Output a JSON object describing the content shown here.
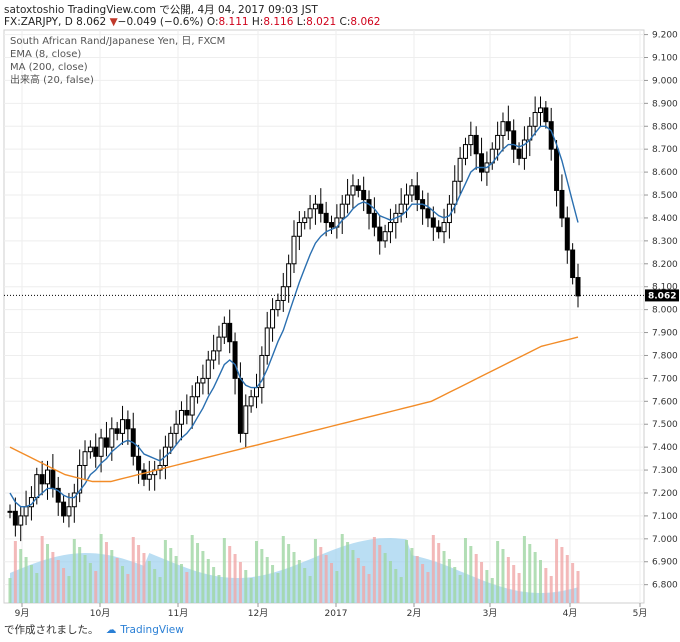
{
  "header": {
    "user": "satoxtoshio",
    "published": "TradingView.com で公開, 4月 04, 2017 09:03 JST",
    "symbol": "FX:ZARJPY, D",
    "last": "8.062",
    "change_arrow": "▼",
    "change": "−0.049 (−0.6%)",
    "o_label": "O:",
    "o": "8.111",
    "h_label": "H:",
    "h": "8.116",
    "l_label": "L:",
    "l": "8.021",
    "c_label": "C:",
    "c": "8.062"
  },
  "legend": {
    "title": "South African Rand/Japanese Yen, 日, FXCM",
    "ema": "EMA (8, close)",
    "ma": "MA (200, close)",
    "volume": "出来高 (20, false)"
  },
  "footer": {
    "text": "で作成されました。",
    "brand": "TradingView"
  },
  "colors": {
    "ema": "#2a6fb0",
    "ma": "#f28c28",
    "volume_area": "#9cd0ee",
    "up_vol": "#9fd6a3",
    "down_vol": "#f0a8a8",
    "grid": "#eeeeee"
  },
  "chart_data": {
    "type": "candlestick",
    "title": "South African Rand/Japanese Yen, 日, FXCM",
    "price_axis": {
      "range": [
        6.72,
        9.22
      ],
      "ticks": [
        "9.200",
        "9.100",
        "9.000",
        "8.900",
        "8.800",
        "8.700",
        "8.600",
        "8.500",
        "8.400",
        "8.300",
        "8.200",
        "8.100",
        "8.000",
        "7.900",
        "7.800",
        "7.700",
        "7.600",
        "7.500",
        "7.400",
        "7.300",
        "7.200",
        "7.100",
        "7.000",
        "6.900",
        "6.800"
      ]
    },
    "time_axis": {
      "ticks": [
        "9月",
        "10月",
        "11月",
        "12月",
        "2017",
        "2月",
        "3月",
        "4月",
        "5月"
      ]
    },
    "last_price": "8.062",
    "candles_close": [
      7.12,
      7.06,
      7.1,
      7.14,
      7.18,
      7.28,
      7.24,
      7.3,
      7.22,
      7.16,
      7.1,
      7.14,
      7.2,
      7.32,
      7.38,
      7.4,
      7.36,
      7.44,
      7.4,
      7.48,
      7.46,
      7.52,
      7.48,
      7.36,
      7.3,
      7.26,
      7.28,
      7.3,
      7.32,
      7.4,
      7.46,
      7.5,
      7.56,
      7.54,
      7.62,
      7.68,
      7.7,
      7.78,
      7.82,
      7.88,
      7.94,
      7.86,
      7.7,
      7.46,
      7.58,
      7.62,
      7.66,
      7.8,
      7.92,
      8.0,
      8.04,
      8.1,
      8.2,
      8.32,
      8.38,
      8.4,
      8.44,
      8.46,
      8.42,
      8.38,
      8.36,
      8.4,
      8.46,
      8.5,
      8.54,
      8.52,
      8.48,
      8.42,
      8.36,
      8.3,
      8.34,
      8.38,
      8.42,
      8.46,
      8.5,
      8.54,
      8.48,
      8.44,
      8.4,
      8.36,
      8.34,
      8.38,
      8.46,
      8.56,
      8.66,
      8.72,
      8.76,
      8.68,
      8.6,
      8.64,
      8.7,
      8.76,
      8.82,
      8.78,
      8.7,
      8.66,
      8.74,
      8.8,
      8.86,
      8.88,
      8.82,
      8.7,
      8.52,
      8.4,
      8.26,
      8.14,
      8.06
    ],
    "ema_8": [
      7.2,
      7.16,
      7.14,
      7.14,
      7.15,
      7.18,
      7.2,
      7.22,
      7.22,
      7.21,
      7.19,
      7.18,
      7.18,
      7.21,
      7.24,
      7.28,
      7.3,
      7.33,
      7.35,
      7.38,
      7.4,
      7.42,
      7.43,
      7.42,
      7.4,
      7.37,
      7.36,
      7.35,
      7.34,
      7.36,
      7.38,
      7.41,
      7.44,
      7.46,
      7.49,
      7.53,
      7.57,
      7.62,
      7.66,
      7.71,
      7.76,
      7.78,
      7.76,
      7.7,
      7.67,
      7.66,
      7.66,
      7.69,
      7.74,
      7.8,
      7.86,
      7.91,
      7.98,
      8.05,
      8.12,
      8.18,
      8.24,
      8.29,
      8.32,
      8.34,
      8.35,
      8.36,
      8.39,
      8.41,
      8.44,
      8.46,
      8.47,
      8.46,
      8.44,
      8.41,
      8.4,
      8.39,
      8.4,
      8.41,
      8.43,
      8.46,
      8.46,
      8.46,
      8.45,
      8.43,
      8.41,
      8.4,
      8.41,
      8.45,
      8.5,
      8.55,
      8.6,
      8.62,
      8.62,
      8.62,
      8.64,
      8.67,
      8.7,
      8.72,
      8.72,
      8.71,
      8.72,
      8.74,
      8.77,
      8.8,
      8.8,
      8.78,
      8.72,
      8.65,
      8.56,
      8.47,
      8.38
    ],
    "ma_200": [
      7.4,
      7.38,
      7.36,
      7.34,
      7.32,
      7.3,
      7.28,
      7.27,
      7.26,
      7.25,
      7.25,
      7.25,
      7.26,
      7.27,
      7.28,
      7.29,
      7.3,
      7.31,
      7.32,
      7.33,
      7.34,
      7.35,
      7.36,
      7.37,
      7.38,
      7.39,
      7.4,
      7.41,
      7.42,
      7.43,
      7.44,
      7.45,
      7.46,
      7.47,
      7.48,
      7.49,
      7.5,
      7.51,
      7.52,
      7.53,
      7.54,
      7.55,
      7.56,
      7.57,
      7.58,
      7.59,
      7.6,
      7.62,
      7.64,
      7.66,
      7.68,
      7.7,
      7.72,
      7.74,
      7.76,
      7.78,
      7.8,
      7.82,
      7.84,
      7.85,
      7.86,
      7.87,
      7.88
    ]
  }
}
